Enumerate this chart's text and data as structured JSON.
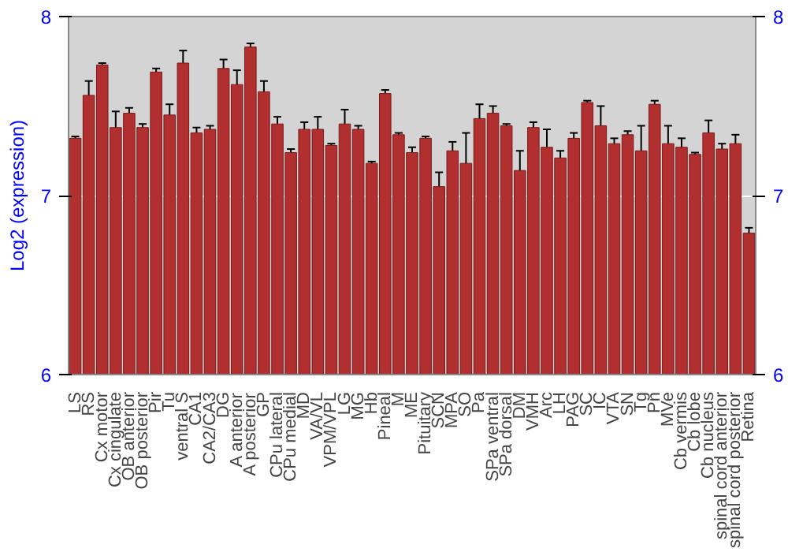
{
  "chart_data": {
    "type": "bar",
    "ylabel": "Log2 (expression)",
    "categories": [
      "LS",
      "RS",
      "Cx motor",
      "Cx cingulate",
      "OB anterior",
      "OB posterior",
      "Pir",
      "Tu",
      "ventral S",
      "CA1",
      "CA2/CA3",
      "DG",
      "A anterior",
      "A posterior",
      "GP",
      "CPu lateral",
      "CPu medial",
      "MD",
      "VA/VL",
      "VPM/VPL",
      "LG",
      "MG",
      "Hb",
      "Pineal",
      "M",
      "ME",
      "Pituitary",
      "SCN",
      "MPA",
      "SO",
      "Pa",
      "SPa ventral",
      "SPa dorsal",
      "DM",
      "VMH",
      "Arc",
      "LH",
      "PAG",
      "SC",
      "IC",
      "VTA",
      "SN",
      "Tg",
      "Pn",
      "MVe",
      "Cb vermis",
      "Cb lobe",
      "Cb nucleus",
      "spinal cord anterior",
      "spinal cord posterior",
      "Retina"
    ],
    "values": [
      7.32,
      7.56,
      7.73,
      7.38,
      7.46,
      7.38,
      7.69,
      7.45,
      7.74,
      7.35,
      7.37,
      7.71,
      7.62,
      7.83,
      7.58,
      7.4,
      7.24,
      7.37,
      7.37,
      7.28,
      7.4,
      7.37,
      7.18,
      7.57,
      7.34,
      7.24,
      7.32,
      7.05,
      7.25,
      7.18,
      7.43,
      7.46,
      7.39,
      7.14,
      7.38,
      7.27,
      7.21,
      7.32,
      7.52,
      7.39,
      7.29,
      7.34,
      7.25,
      7.51,
      7.29,
      7.27,
      7.23,
      7.35,
      7.26,
      7.29,
      6.79
    ],
    "errors": [
      0.01,
      0.08,
      0.01,
      0.09,
      0.03,
      0.02,
      0.02,
      0.06,
      0.07,
      0.03,
      0.02,
      0.05,
      0.08,
      0.02,
      0.06,
      0.04,
      0.02,
      0.04,
      0.07,
      0.01,
      0.08,
      0.02,
      0.01,
      0.02,
      0.01,
      0.03,
      0.01,
      0.08,
      0.05,
      0.17,
      0.08,
      0.04,
      0.01,
      0.11,
      0.03,
      0.1,
      0.04,
      0.03,
      0.01,
      0.11,
      0.03,
      0.02,
      0.14,
      0.02,
      0.1,
      0.05,
      0.01,
      0.07,
      0.03,
      0.05,
      0.03
    ],
    "color": "#b22f2f",
    "ylim": [
      6,
      8
    ],
    "yticks": [
      6,
      7,
      8
    ],
    "y2lim": [
      6,
      8
    ],
    "y2ticks": [
      6,
      7,
      8
    ],
    "grid": "y"
  }
}
